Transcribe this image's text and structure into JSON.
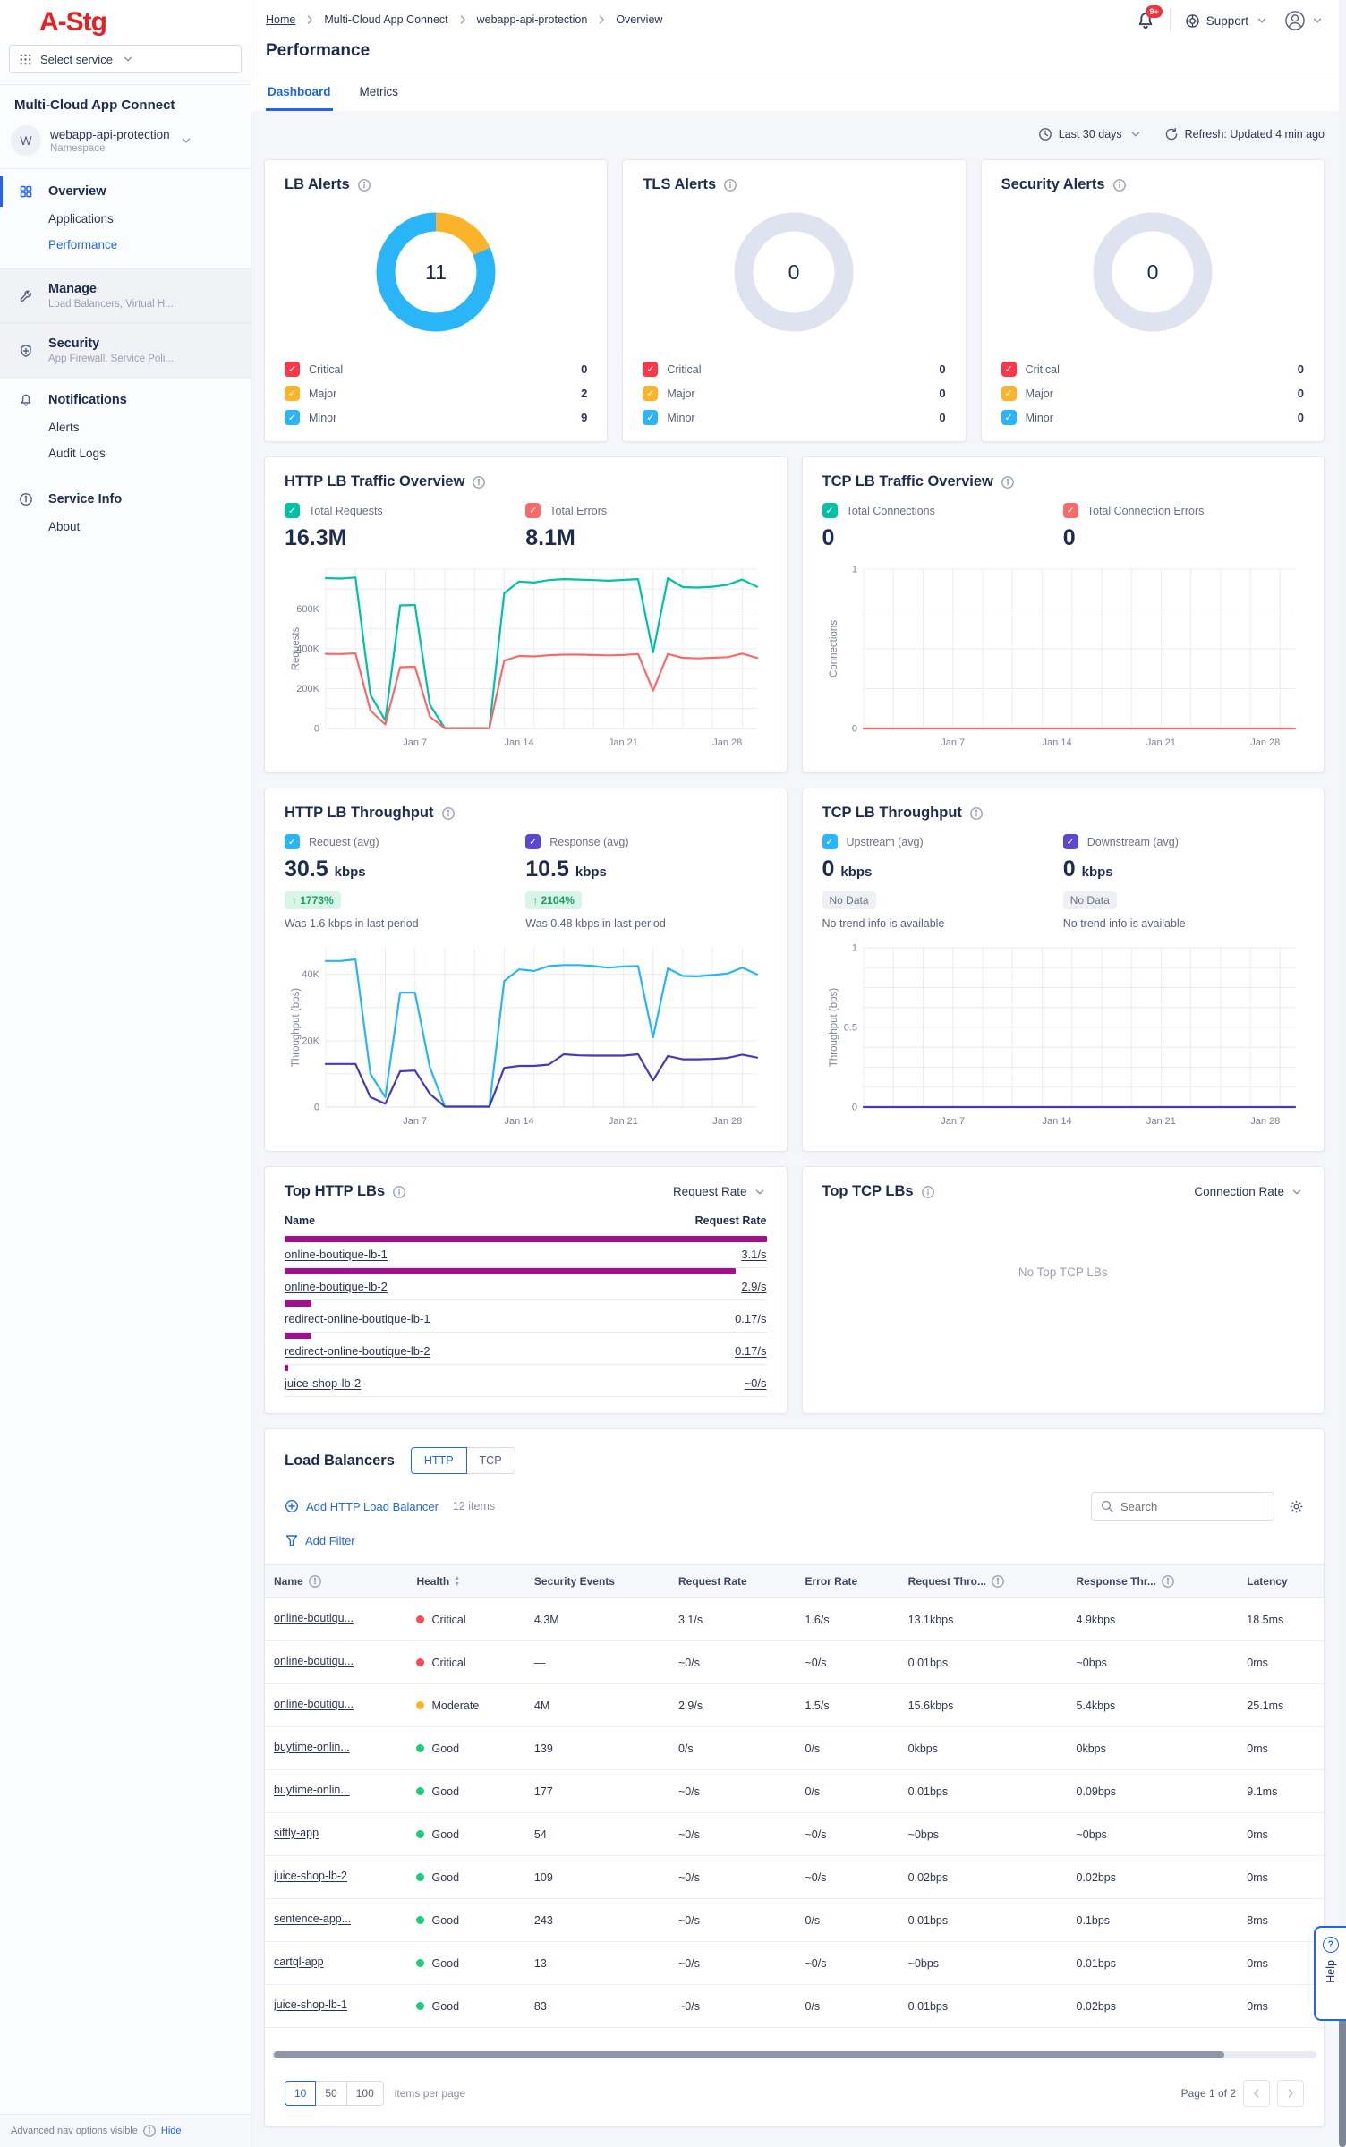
{
  "colors": {
    "accent": "#2064f0",
    "logo_red": "#e32226",
    "teal": "#00c2a2",
    "pink": "#fa6a6a",
    "sky_blue": "#29b5f8",
    "purple_checkbox": "#5a48cf",
    "purple_line": "#463bb3",
    "magenta_bar": "#a1118e",
    "critical_red": "#fb3748",
    "major_orange": "#fcb32c",
    "minor_blue": "#29b5f8",
    "good_green": "#1ecb7b",
    "donut_empty": "#dfe3f0"
  },
  "header": {
    "logo": "A-Stg",
    "select_service": "Select service",
    "breadcrumb": [
      "Home",
      "Multi-Cloud App Connect",
      "webapp-api-protection",
      "Overview"
    ],
    "page_title": "Performance",
    "tabs": [
      {
        "label": "Dashboard",
        "active": true
      },
      {
        "label": "Metrics",
        "active": false
      }
    ],
    "notification_badge": "9+",
    "support_label": "Support"
  },
  "sidebar": {
    "title": "Multi-Cloud App Connect",
    "namespace": {
      "avatar": "W",
      "name": "webapp-api-protection",
      "type": "Namespace"
    },
    "sections": [
      {
        "label": "Overview",
        "icon": "grid4-icon",
        "active": true,
        "children": [
          {
            "label": "Applications",
            "active": false
          },
          {
            "label": "Performance",
            "active": true
          }
        ]
      },
      {
        "label": "Manage",
        "icon": "wrench-icon",
        "subtitle": "Load Balancers, Virtual H...",
        "muted": true
      },
      {
        "label": "Security",
        "icon": "shield-icon",
        "subtitle": "App Firewall, Service Poli...",
        "muted": true
      },
      {
        "label": "Notifications",
        "icon": "bell-icon",
        "children": [
          {
            "label": "Alerts",
            "active": false
          },
          {
            "label": "Audit Logs",
            "active": false
          }
        ]
      },
      {
        "label": "Service Info",
        "icon": "info-icon",
        "children": [
          {
            "label": "About",
            "active": false
          }
        ]
      }
    ],
    "footer": {
      "text": "Advanced nav options visible",
      "action": "Hide"
    }
  },
  "toolbar": {
    "time_range": "Last 30 days",
    "refresh": "Refresh: Updated 4 min ago"
  },
  "alert_cards": [
    {
      "title": "LB Alerts",
      "total": "11",
      "legend": [
        {
          "label": "Critical",
          "value": "0",
          "color": "#fb3748"
        },
        {
          "label": "Major",
          "value": "2",
          "color": "#fcb32c"
        },
        {
          "label": "Minor",
          "value": "9",
          "color": "#29b5f8"
        }
      ],
      "donut_segments": [
        {
          "color": "#fcb32c",
          "value": 2
        },
        {
          "color": "#29b5f8",
          "value": 9
        }
      ]
    },
    {
      "title": "TLS Alerts",
      "total": "0",
      "legend": [
        {
          "label": "Critical",
          "value": "0",
          "color": "#fb3748"
        },
        {
          "label": "Major",
          "value": "0",
          "color": "#fcb32c"
        },
        {
          "label": "Minor",
          "value": "0",
          "color": "#29b5f8"
        }
      ],
      "donut_segments": []
    },
    {
      "title": "Security Alerts",
      "total": "0",
      "legend": [
        {
          "label": "Critical",
          "value": "0",
          "color": "#fb3748"
        },
        {
          "label": "Major",
          "value": "0",
          "color": "#fcb32c"
        },
        {
          "label": "Minor",
          "value": "0",
          "color": "#29b5f8"
        }
      ],
      "donut_segments": []
    }
  ],
  "chart_data": [
    {
      "type": "line",
      "title": "HTTP LB Traffic Overview",
      "ylabel": "Requests",
      "stats": [
        {
          "label": "Total Requests",
          "checkbox_color": "#00c2a2",
          "value": "16.3M"
        },
        {
          "label": "Total Errors",
          "checkbox_color": "#fa6a6a",
          "value": "8.1M"
        }
      ],
      "x_range": [
        1,
        30
      ],
      "x_ticks": [
        [
          7,
          "Jan 7"
        ],
        [
          14,
          "Jan 14"
        ],
        [
          21,
          "Jan 21"
        ],
        [
          28,
          "Jan 28"
        ]
      ],
      "ylim": [
        0,
        800
      ],
      "y_ticks": [
        [
          0,
          "0"
        ],
        [
          200,
          "200K"
        ],
        [
          400,
          "400K"
        ],
        [
          600,
          "600K"
        ]
      ],
      "y_grid_step": 100,
      "x_grid_step": 2,
      "series": [
        {
          "name": "Total Requests",
          "color": "#00c2a2",
          "values": [
            755,
            753,
            758,
            170,
            40,
            618,
            620,
            120,
            2,
            2,
            2,
            2,
            680,
            738,
            733,
            745,
            750,
            748,
            745,
            742,
            746,
            750,
            382,
            755,
            710,
            708,
            712,
            722,
            748,
            712
          ]
        },
        {
          "name": "Total Errors",
          "color": "#fa6a6a",
          "values": [
            375,
            374,
            377,
            90,
            20,
            308,
            310,
            60,
            1,
            1,
            1,
            1,
            340,
            364,
            362,
            368,
            371,
            371,
            369,
            367,
            369,
            374,
            190,
            374,
            355,
            352,
            355,
            358,
            376,
            354
          ]
        }
      ]
    },
    {
      "type": "line",
      "title": "TCP LB Traffic Overview",
      "ylabel": "Connections",
      "stats": [
        {
          "label": "Total Connections",
          "checkbox_color": "#00c2a2",
          "value": "0"
        },
        {
          "label": "Total Connection Errors",
          "checkbox_color": "#fa6a6a",
          "value": "0"
        }
      ],
      "x_range": [
        1,
        30
      ],
      "x_ticks": [
        [
          7,
          "Jan 7"
        ],
        [
          14,
          "Jan 14"
        ],
        [
          21,
          "Jan 21"
        ],
        [
          28,
          "Jan 28"
        ]
      ],
      "ylim": [
        0,
        1
      ],
      "y_ticks": [
        [
          0,
          "0"
        ],
        [
          1,
          "1"
        ]
      ],
      "y_grid_step": 0.25,
      "x_grid_step": 2,
      "series": [
        {
          "name": "Total Connection Errors",
          "color": "#fa6a6a",
          "values": [
            0,
            0,
            0,
            0,
            0,
            0,
            0,
            0,
            0,
            0,
            0,
            0,
            0,
            0,
            0,
            0,
            0,
            0,
            0,
            0,
            0,
            0,
            0,
            0,
            0,
            0,
            0,
            0,
            0,
            0
          ]
        }
      ]
    },
    {
      "type": "line",
      "title": "HTTP LB Throughput",
      "ylabel": "Throughput (bps)",
      "stats": [
        {
          "label": "Request (avg)",
          "checkbox_color": "#29b5f8",
          "value": "30.5",
          "unit": "kbps",
          "badge": "1773%",
          "badge_dir": "up",
          "sub": "Was 1.6 kbps in last period"
        },
        {
          "label": "Response (avg)",
          "checkbox_color": "#5a48cf",
          "value": "10.5",
          "unit": "kbps",
          "badge": "2104%",
          "badge_dir": "up",
          "sub": "Was 0.48 kbps in last period"
        }
      ],
      "x_range": [
        1,
        30
      ],
      "x_ticks": [
        [
          7,
          "Jan 7"
        ],
        [
          14,
          "Jan 14"
        ],
        [
          21,
          "Jan 21"
        ],
        [
          28,
          "Jan 28"
        ]
      ],
      "ylim": [
        0,
        48
      ],
      "y_ticks": [
        [
          0,
          "0"
        ],
        [
          20,
          "20K"
        ],
        [
          40,
          "40K"
        ]
      ],
      "y_grid_step": 10,
      "x_grid_step": 2,
      "series": [
        {
          "name": "Request (avg)",
          "color": "#29b5f8",
          "values": [
            44,
            44,
            44.5,
            10,
            3,
            34.5,
            34.5,
            12,
            0.2,
            0.2,
            0.2,
            0.2,
            38,
            41.5,
            41,
            42.5,
            42.8,
            42.8,
            42.5,
            42,
            42.4,
            42.5,
            21,
            41.8,
            39.5,
            39.4,
            39.8,
            40.2,
            42,
            40
          ]
        },
        {
          "name": "Response (avg)",
          "color": "#463bb3",
          "values": [
            13,
            13,
            13,
            3,
            1,
            10.8,
            11,
            4,
            0.1,
            0.1,
            0.1,
            0.1,
            11.8,
            12.4,
            12.4,
            12.8,
            15.9,
            15.6,
            15.5,
            15.5,
            15.5,
            15.9,
            8,
            15.4,
            14.4,
            14.4,
            14.5,
            14.8,
            15.8,
            14.9
          ]
        }
      ]
    },
    {
      "type": "line",
      "title": "TCP LB Throughput",
      "ylabel": "Throughput (bps)",
      "stats": [
        {
          "label": "Upstream (avg)",
          "checkbox_color": "#29b5f8",
          "value": "0",
          "unit": "kbps",
          "badge": "No Data",
          "badge_dir": "nodata",
          "sub": "No trend info is available"
        },
        {
          "label": "Downstream (avg)",
          "checkbox_color": "#5a48cf",
          "value": "0",
          "unit": "kbps",
          "badge": "No Data",
          "badge_dir": "nodata",
          "sub": "No trend info is available"
        }
      ],
      "x_range": [
        1,
        30
      ],
      "x_ticks": [
        [
          7,
          "Jan 7"
        ],
        [
          14,
          "Jan 14"
        ],
        [
          21,
          "Jan 21"
        ],
        [
          28,
          "Jan 28"
        ]
      ],
      "ylim": [
        0,
        1
      ],
      "y_ticks": [
        [
          0,
          "0"
        ],
        [
          0.5,
          "0.5"
        ],
        [
          1,
          "1"
        ]
      ],
      "y_grid_step": 0.125,
      "x_grid_step": 2,
      "series": [
        {
          "name": "Downstream (avg)",
          "color": "#463bb3",
          "values": [
            0,
            0,
            0,
            0,
            0,
            0,
            0,
            0,
            0,
            0,
            0,
            0,
            0,
            0,
            0,
            0,
            0,
            0,
            0,
            0,
            0,
            0,
            0,
            0,
            0,
            0,
            0,
            0,
            0,
            0
          ]
        }
      ]
    }
  ],
  "top_http_lbs": {
    "title": "Top HTTP LBs",
    "metric": "Request Rate",
    "columns": [
      "Name",
      "Request Rate"
    ],
    "bar_color": "#a1118e",
    "max_value": 3.1,
    "rows": [
      {
        "name": "online-boutique-lb-1",
        "value": "3.1/s",
        "num": 3.1
      },
      {
        "name": "online-boutique-lb-2",
        "value": "2.9/s",
        "num": 2.9
      },
      {
        "name": "redirect-online-boutique-lb-1",
        "value": "0.17/s",
        "num": 0.17
      },
      {
        "name": "redirect-online-boutique-lb-2",
        "value": "0.17/s",
        "num": 0.17
      },
      {
        "name": "juice-shop-lb-2",
        "value": "~0/s",
        "num": 0.025
      }
    ]
  },
  "top_tcp_lbs": {
    "title": "Top TCP LBs",
    "metric": "Connection Rate",
    "empty_text": "No Top TCP LBs"
  },
  "load_balancers": {
    "title": "Load Balancers",
    "type_tabs": [
      {
        "label": "HTTP",
        "active": true
      },
      {
        "label": "TCP",
        "active": false
      }
    ],
    "add_button": "Add HTTP Load Balancer",
    "items_count": "12 items",
    "search_placeholder": "Search",
    "filter_label": "Add Filter",
    "columns": [
      {
        "label": "Name",
        "info": true
      },
      {
        "label": "Health",
        "sortable": true
      },
      {
        "label": "Security Events"
      },
      {
        "label": "Request Rate"
      },
      {
        "label": "Error Rate"
      },
      {
        "label": "Request Thro...",
        "info": true
      },
      {
        "label": "Response Thr...",
        "info": true
      },
      {
        "label": "Latency"
      }
    ],
    "health_colors": {
      "Critical": "#fb4a57",
      "Moderate": "#fcb32c",
      "Good": "#1ecb7b"
    },
    "rows": [
      {
        "name": "online-boutiqu...",
        "health": "Critical",
        "security_events": "4.3M",
        "request_rate": "3.1/s",
        "error_rate": "1.6/s",
        "request_throughput": "13.1kbps",
        "response_throughput": "4.9kbps",
        "latency": "18.5ms"
      },
      {
        "name": "online-boutiqu...",
        "health": "Critical",
        "security_events": "—",
        "request_rate": "~0/s",
        "error_rate": "~0/s",
        "request_throughput": "0.01bps",
        "response_throughput": "~0bps",
        "latency": "0ms"
      },
      {
        "name": "online-boutiqu...",
        "health": "Moderate",
        "security_events": "4M",
        "request_rate": "2.9/s",
        "error_rate": "1.5/s",
        "request_throughput": "15.6kbps",
        "response_throughput": "5.4kbps",
        "latency": "25.1ms"
      },
      {
        "name": "buytime-onlin...",
        "health": "Good",
        "security_events": "139",
        "request_rate": "0/s",
        "error_rate": "0/s",
        "request_throughput": "0kbps",
        "response_throughput": "0kbps",
        "latency": "0ms"
      },
      {
        "name": "buytime-onlin...",
        "health": "Good",
        "security_events": "177",
        "request_rate": "~0/s",
        "error_rate": "0/s",
        "request_throughput": "0.01bps",
        "response_throughput": "0.09bps",
        "latency": "9.1ms"
      },
      {
        "name": "siftly-app",
        "health": "Good",
        "security_events": "54",
        "request_rate": "~0/s",
        "error_rate": "~0/s",
        "request_throughput": "~0bps",
        "response_throughput": "~0bps",
        "latency": "0ms"
      },
      {
        "name": "juice-shop-lb-2",
        "health": "Good",
        "security_events": "109",
        "request_rate": "~0/s",
        "error_rate": "~0/s",
        "request_throughput": "0.02bps",
        "response_throughput": "0.02bps",
        "latency": "0ms"
      },
      {
        "name": "sentence-app...",
        "health": "Good",
        "security_events": "243",
        "request_rate": "~0/s",
        "error_rate": "0/s",
        "request_throughput": "0.01bps",
        "response_throughput": "0.1bps",
        "latency": "8ms"
      },
      {
        "name": "cartql-app",
        "health": "Good",
        "security_events": "13",
        "request_rate": "~0/s",
        "error_rate": "~0/s",
        "request_throughput": "~0bps",
        "response_throughput": "0.01bps",
        "latency": "0ms"
      },
      {
        "name": "juice-shop-lb-1",
        "health": "Good",
        "security_events": "83",
        "request_rate": "~0/s",
        "error_rate": "0/s",
        "request_throughput": "0.01bps",
        "response_throughput": "0.02bps",
        "latency": "0ms"
      }
    ],
    "pagination": {
      "page_sizes": [
        "10",
        "50",
        "100"
      ],
      "selected_size": "10",
      "label": "items per page",
      "page_info": "Page 1 of 2"
    }
  },
  "help_tab": {
    "label": "Help"
  }
}
